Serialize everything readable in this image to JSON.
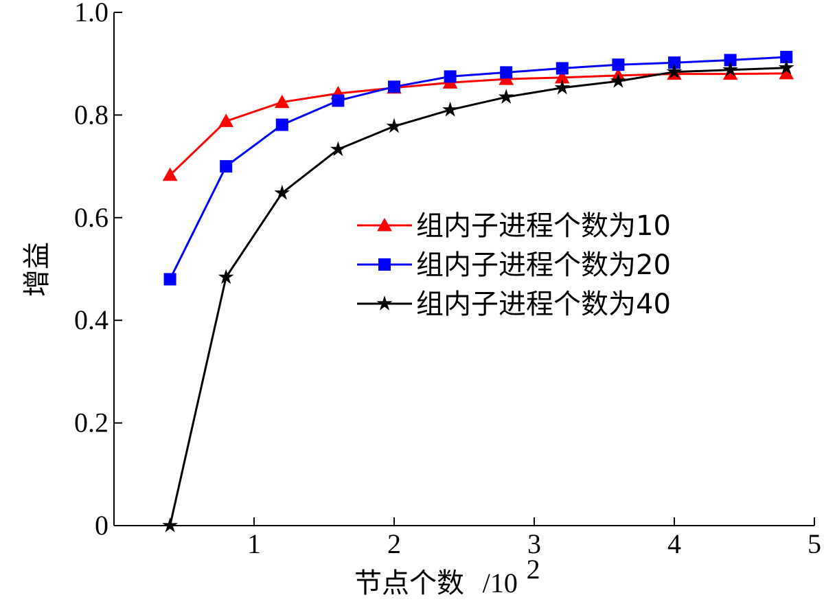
{
  "chart_data": {
    "type": "line",
    "title": "",
    "xlabel": "节点个数",
    "xlabel_unit": "/10",
    "xlabel_unit_exp": "2",
    "ylabel": "增益",
    "xlim": [
      0,
      5
    ],
    "ylim": [
      0,
      1.0
    ],
    "xticks": [
      1,
      2,
      3,
      4,
      5
    ],
    "xtick_labels": [
      "1",
      "2",
      "3",
      "4",
      "5"
    ],
    "yticks": [
      0,
      0.2,
      0.4,
      0.6,
      0.8,
      1.0
    ],
    "ytick_labels": [
      "0",
      "0.2",
      "0.4",
      "0.6",
      "0.8",
      "1.0"
    ],
    "grid": false,
    "legend_position": "right-middle",
    "series": [
      {
        "name": "组内子进程个数为10",
        "color": "#ff0000",
        "marker": "triangle",
        "x": [
          0.4,
          0.8,
          1.2,
          1.6,
          2.0,
          2.4,
          2.8,
          3.2,
          3.6,
          4.0,
          4.4,
          4.8
        ],
        "y": [
          0.683,
          0.788,
          0.825,
          0.842,
          0.853,
          0.863,
          0.87,
          0.873,
          0.877,
          0.88,
          0.88,
          0.881
        ]
      },
      {
        "name": "组内子进程个数为20",
        "color": "#0000ff",
        "marker": "square",
        "x": [
          0.4,
          0.8,
          1.2,
          1.6,
          2.0,
          2.4,
          2.8,
          3.2,
          3.6,
          4.0,
          4.4,
          4.8
        ],
        "y": [
          0.48,
          0.7,
          0.781,
          0.828,
          0.855,
          0.875,
          0.883,
          0.891,
          0.898,
          0.902,
          0.907,
          0.913
        ]
      },
      {
        "name": "组内子进程个数为40",
        "color": "#000000",
        "marker": "star",
        "x": [
          0.4,
          0.8,
          1.2,
          1.6,
          2.0,
          2.4,
          2.8,
          3.2,
          3.6,
          4.0,
          4.4,
          4.8
        ],
        "y": [
          0.0,
          0.484,
          0.648,
          0.733,
          0.778,
          0.81,
          0.835,
          0.853,
          0.866,
          0.884,
          0.888,
          0.892
        ]
      }
    ]
  }
}
